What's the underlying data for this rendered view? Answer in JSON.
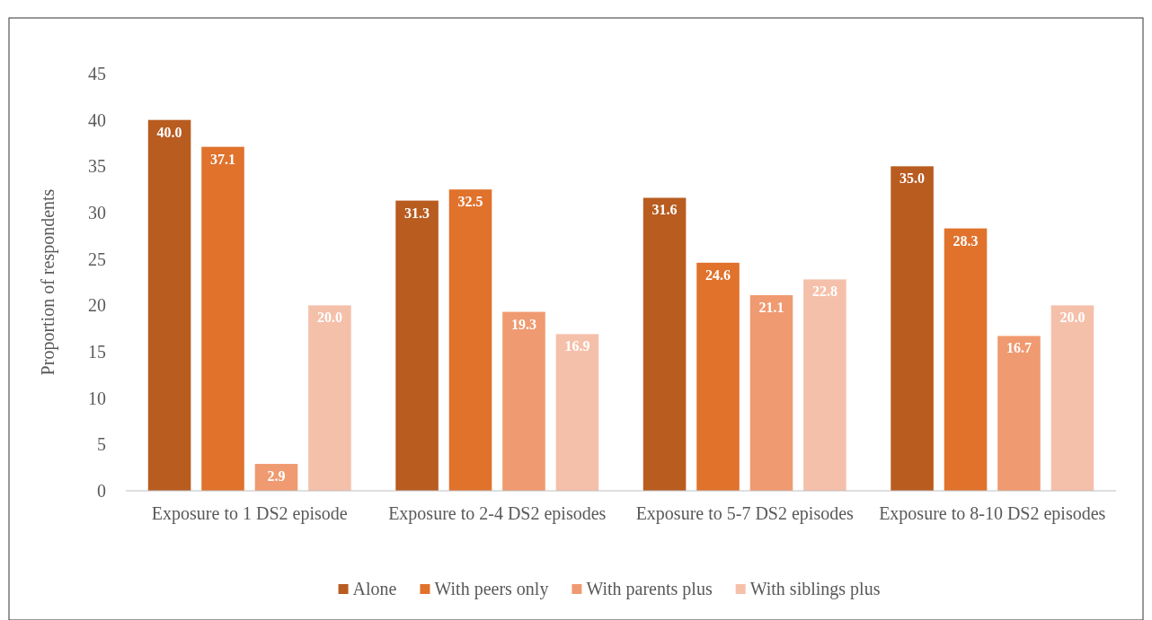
{
  "chart_data": {
    "type": "bar",
    "ylabel": "Proportion of respondents",
    "categories": [
      "Exposure to 1 DS2 episode",
      "Exposure to 2-4 DS2 episodes",
      "Exposure to 5-7 DS2 episodes",
      "Exposure to 8-10 DS2 episodes"
    ],
    "series": [
      {
        "name": "Alone",
        "color": "#b85c20",
        "values": [
          40,
          31.3,
          31.6,
          35
        ],
        "value_labels": [
          "40.0",
          "31.3",
          "31.6",
          "35.0"
        ]
      },
      {
        "name": "With peers only",
        "color": "#e0722c",
        "values": [
          37.1,
          32.5,
          24.6,
          28.3
        ],
        "value_labels": [
          "37.1",
          "32.5",
          "24.6",
          "28.3"
        ]
      },
      {
        "name": "With parents plus",
        "color": "#ef9a70",
        "values": [
          2.9,
          19.3,
          21.1,
          16.7
        ],
        "value_labels": [
          "2.9",
          "19.3",
          "21.1",
          "16.7"
        ]
      },
      {
        "name": "With siblings plus",
        "color": "#f5c0aa",
        "values": [
          20,
          16.9,
          22.8,
          20
        ],
        "value_labels": [
          "20.0",
          "16.9",
          "22.8",
          "20.0"
        ]
      }
    ],
    "ylim": [
      0,
      45
    ],
    "yticks": [
      0,
      5,
      10,
      15,
      20,
      25,
      30,
      35,
      40,
      45
    ],
    "legend": "bottom"
  }
}
